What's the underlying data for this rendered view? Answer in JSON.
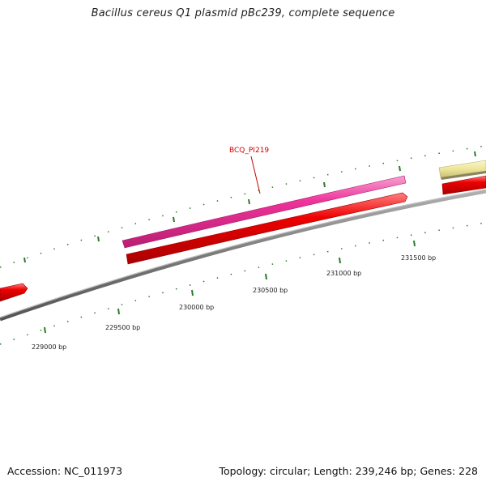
{
  "map": {
    "title": "Bacillus cereus Q1 plasmid pBc239, complete sequence",
    "accession": "Accession: NC_011973",
    "summary": "Topology: circular; Length: 239,246 bp; Genes: 228"
  },
  "gene_label": "BCQ_PI219",
  "scale": {
    "labels": [
      "229000 bp",
      "229500 bp",
      "230000 bp",
      "230500 bp",
      "231000 bp",
      "231500 bp"
    ]
  },
  "colors": {
    "backbone": "#7a7a7a",
    "cds_forward": "#ee3399",
    "cds_reverse": "#ee0000",
    "other_feature": "#eee69a",
    "tick": "#2a7a2a",
    "label": "#cc0000"
  }
}
